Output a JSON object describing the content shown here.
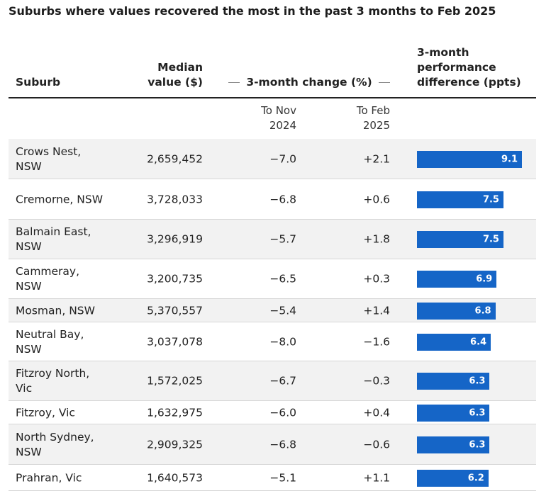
{
  "title": "Suburbs where values recovered the most in the past 3 months to Feb 2025",
  "headers": {
    "suburb": "Suburb",
    "median_line1": "Median",
    "median_line2": "value ($)",
    "change": "3-month change (%)",
    "perf_line1": "3-month",
    "perf_line2": "performance",
    "perf_line3": "difference (ppts)",
    "nov_line1": "To Nov",
    "nov_line2": "2024",
    "feb_line1": "To Feb",
    "feb_line2": "2025"
  },
  "colors": {
    "bar": "#1565c7",
    "alt_row": "#f2f2f2"
  },
  "chart_data": {
    "type": "table",
    "title": "Suburbs where values recovered the most in the past 3 months to Feb 2025",
    "columns": [
      "Suburb",
      "Median value ($)",
      "To Nov 2024",
      "To Feb 2025",
      "3-month performance difference (ppts)"
    ],
    "rows": [
      {
        "suburb": "Crows Nest, NSW",
        "median": "2,659,452",
        "nov": "−7.0",
        "feb": "+2.1",
        "diff": 9.1
      },
      {
        "suburb": "Cremorne, NSW",
        "median": "3,728,033",
        "nov": "−6.8",
        "feb": "+0.6",
        "diff": 7.5
      },
      {
        "suburb": "Balmain East, NSW",
        "median": "3,296,919",
        "nov": "−5.7",
        "feb": "+1.8",
        "diff": 7.5
      },
      {
        "suburb": "Cammeray, NSW",
        "median": "3,200,735",
        "nov": "−6.5",
        "feb": "+0.3",
        "diff": 6.9
      },
      {
        "suburb": "Mosman, NSW",
        "median": "5,370,557",
        "nov": "−5.4",
        "feb": "+1.4",
        "diff": 6.8
      },
      {
        "suburb": "Neutral Bay, NSW",
        "median": "3,037,078",
        "nov": "−8.0",
        "feb": "−1.6",
        "diff": 6.4
      },
      {
        "suburb": "Fitzroy North, Vic",
        "median": "1,572,025",
        "nov": "−6.7",
        "feb": "−0.3",
        "diff": 6.3
      },
      {
        "suburb": "Fitzroy, Vic",
        "median": "1,632,975",
        "nov": "−6.0",
        "feb": "+0.4",
        "diff": 6.3
      },
      {
        "suburb": "North Sydney, NSW",
        "median": "2,909,325",
        "nov": "−6.8",
        "feb": "−0.6",
        "diff": 6.3
      },
      {
        "suburb": "Prahran, Vic",
        "median": "1,640,573",
        "nov": "−5.1",
        "feb": "+1.1",
        "diff": 6.2
      }
    ],
    "bar_max": 9.1
  }
}
